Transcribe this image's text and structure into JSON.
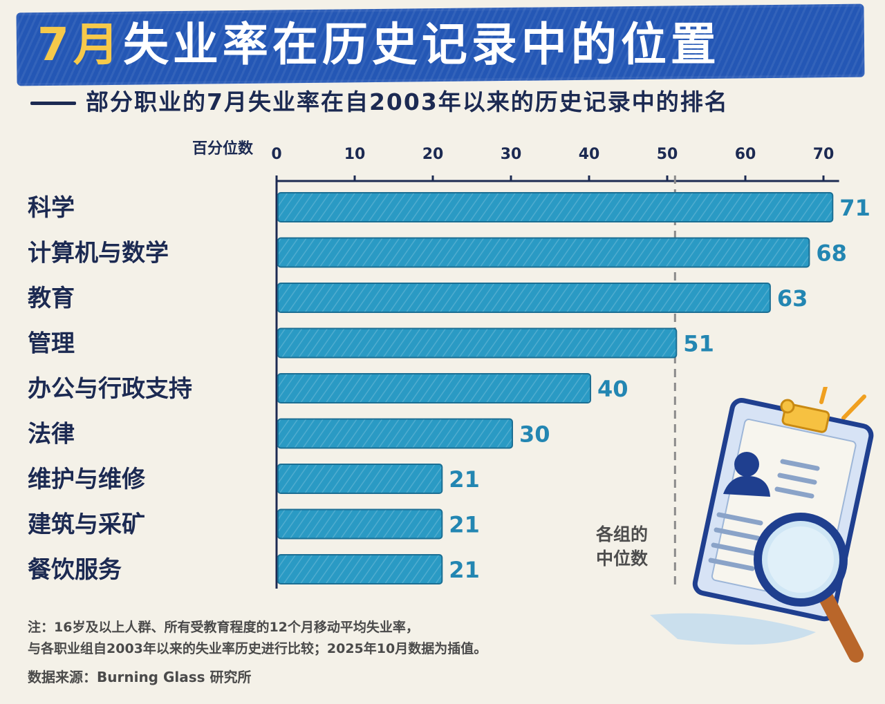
{
  "header": {
    "title_highlight": "7月",
    "title_rest": "失业率在历史记录中的位置",
    "subtitle": "部分职业的7月失业率在自2003年以来的历史记录中的排名"
  },
  "chart_data": {
    "type": "bar",
    "orientation": "horizontal",
    "axis_title": "百分位数",
    "xlim": [
      0,
      71
    ],
    "ticks": [
      0,
      10,
      20,
      30,
      40,
      50,
      60,
      70
    ],
    "categories": [
      "科学",
      "计算机与数学",
      "教育",
      "管理",
      "办公与行政支持",
      "法律",
      "维护与维修",
      "建筑与采矿",
      "餐饮服务"
    ],
    "values": [
      71,
      68,
      63,
      51,
      40,
      30,
      21,
      21,
      21
    ],
    "reference_line": {
      "value": 51,
      "label": "各组的中位数"
    },
    "bar_color": "#2a9ac4",
    "label_color": "#2386b2"
  },
  "footer": {
    "note_line1": "注：16岁及以上人群、所有受教育程度的12个月移动平均失业率，",
    "note_line2": "与各职业组自2003年以来的失业率历史进行比较；2025年10月数据为插值。",
    "source": "数据来源：Burning Glass 研究所"
  }
}
